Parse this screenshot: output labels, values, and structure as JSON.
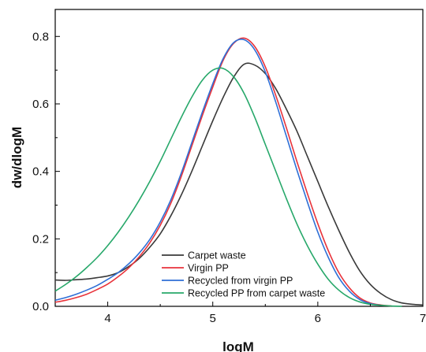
{
  "chart_data": {
    "type": "line",
    "xlabel": "logM",
    "ylabel": "dw/dlogM",
    "xlim": [
      3.5,
      7
    ],
    "ylim": [
      0,
      0.88
    ],
    "x_ticks": [
      4,
      5,
      6,
      7
    ],
    "y_ticks": [
      0.0,
      0.2,
      0.4,
      0.6,
      0.8
    ],
    "y_tick_labels": [
      "0.0",
      "0.2",
      "0.4",
      "0.6",
      "0.8"
    ],
    "grid": false,
    "legend_position": "bottom-center",
    "series": [
      {
        "name": "Carpet waste",
        "color": "#3a3a3a",
        "x": [
          3.5,
          3.6,
          3.7,
          3.8,
          3.9,
          4.0,
          4.1,
          4.2,
          4.3,
          4.4,
          4.5,
          4.6,
          4.7,
          4.8,
          4.9,
          5.0,
          5.1,
          5.2,
          5.3,
          5.4,
          5.5,
          5.6,
          5.7,
          5.8,
          5.9,
          6.0,
          6.1,
          6.2,
          6.3,
          6.4,
          6.5,
          6.6,
          6.7,
          6.8,
          6.9,
          7.0
        ],
        "y": [
          0.078,
          0.077,
          0.079,
          0.081,
          0.085,
          0.09,
          0.1,
          0.118,
          0.142,
          0.175,
          0.215,
          0.268,
          0.33,
          0.4,
          0.475,
          0.55,
          0.62,
          0.68,
          0.718,
          0.715,
          0.69,
          0.645,
          0.585,
          0.52,
          0.445,
          0.37,
          0.295,
          0.225,
          0.16,
          0.105,
          0.065,
          0.038,
          0.02,
          0.01,
          0.006,
          0.004
        ]
      },
      {
        "name": "Virgin PP",
        "color": "#e8333b",
        "x": [
          3.5,
          3.6,
          3.7,
          3.8,
          3.9,
          4.0,
          4.1,
          4.2,
          4.3,
          4.4,
          4.5,
          4.6,
          4.7,
          4.8,
          4.9,
          5.0,
          5.1,
          5.2,
          5.3,
          5.4,
          5.5,
          5.6,
          5.7,
          5.8,
          5.9,
          6.0,
          6.1,
          6.2,
          6.3,
          6.4,
          6.5,
          6.6,
          6.7
        ],
        "y": [
          0.012,
          0.018,
          0.026,
          0.036,
          0.05,
          0.066,
          0.088,
          0.114,
          0.147,
          0.188,
          0.24,
          0.305,
          0.385,
          0.475,
          0.565,
          0.65,
          0.73,
          0.78,
          0.795,
          0.77,
          0.71,
          0.625,
          0.53,
          0.43,
          0.335,
          0.245,
          0.165,
          0.1,
          0.055,
          0.025,
          0.01,
          0.004,
          0.001
        ]
      },
      {
        "name": "Recycled from virgin PP",
        "color": "#2f6fd6",
        "x": [
          3.5,
          3.6,
          3.7,
          3.8,
          3.9,
          4.0,
          4.1,
          4.2,
          4.3,
          4.4,
          4.5,
          4.6,
          4.7,
          4.8,
          4.9,
          5.0,
          5.1,
          5.2,
          5.3,
          5.4,
          5.5,
          5.6,
          5.7,
          5.8,
          5.9,
          6.0,
          6.1,
          6.2,
          6.3,
          6.4,
          6.5,
          6.6
        ],
        "y": [
          0.018,
          0.026,
          0.036,
          0.048,
          0.062,
          0.08,
          0.1,
          0.126,
          0.158,
          0.198,
          0.25,
          0.315,
          0.395,
          0.485,
          0.575,
          0.66,
          0.735,
          0.782,
          0.79,
          0.76,
          0.695,
          0.605,
          0.505,
          0.405,
          0.31,
          0.22,
          0.145,
          0.085,
          0.045,
          0.02,
          0.008,
          0.003
        ]
      },
      {
        "name": "Recycled PP from carpet waste",
        "color": "#27a86a",
        "x": [
          3.5,
          3.6,
          3.7,
          3.8,
          3.9,
          4.0,
          4.1,
          4.2,
          4.3,
          4.4,
          4.5,
          4.6,
          4.7,
          4.8,
          4.9,
          5.0,
          5.1,
          5.2,
          5.3,
          5.4,
          5.5,
          5.6,
          5.7,
          5.8,
          5.9,
          6.0,
          6.1,
          6.2,
          6.3,
          6.4,
          6.5,
          6.6,
          6.7,
          6.8
        ],
        "y": [
          0.045,
          0.065,
          0.088,
          0.115,
          0.145,
          0.18,
          0.22,
          0.265,
          0.315,
          0.37,
          0.43,
          0.495,
          0.56,
          0.62,
          0.67,
          0.7,
          0.705,
          0.68,
          0.63,
          0.56,
          0.48,
          0.4,
          0.32,
          0.245,
          0.18,
          0.125,
          0.08,
          0.048,
          0.026,
          0.013,
          0.006,
          0.003,
          0.001,
          0.0
        ]
      }
    ]
  }
}
